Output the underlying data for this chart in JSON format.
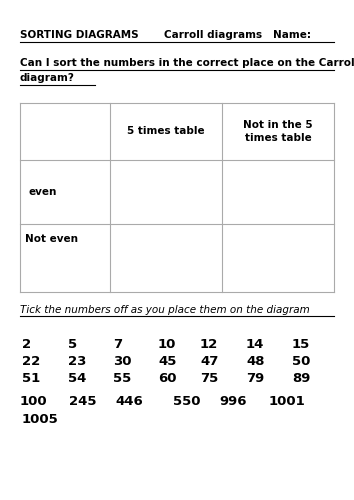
{
  "title1": "SORTING DIAGRAMS       Carroll diagrams   Name:",
  "title2_line1": "Can I sort the numbers in the correct place on the Carroll",
  "title2_line2": "diagram?",
  "col_headers": [
    "5 times table",
    "Not in the 5\ntimes table"
  ],
  "row_headers": [
    "even",
    "Not even"
  ],
  "tick_instruction": "Tick the numbers off as you place them on the diagram",
  "num_row1": [
    "2",
    "5",
    "7",
    "10",
    "12",
    "14",
    "15"
  ],
  "num_row2": [
    "22",
    "23",
    "30",
    "45",
    "47",
    "48",
    "50"
  ],
  "num_row3": [
    "51",
    "54",
    "55",
    "60",
    "75",
    "79",
    "89"
  ],
  "num_row4_items": [
    [
      "100",
      0.055
    ],
    [
      "245",
      0.195
    ],
    [
      "446",
      0.325
    ],
    [
      "550",
      0.49
    ],
    [
      "996",
      0.62
    ],
    [
      "1001",
      0.76
    ]
  ],
  "num_row5": "1005",
  "bg_color": "#ffffff",
  "text_color": "#000000",
  "line_color": "#aaaaaa",
  "fs_title": 7.5,
  "fs_body": 7.5,
  "fs_numbers": 9.5
}
